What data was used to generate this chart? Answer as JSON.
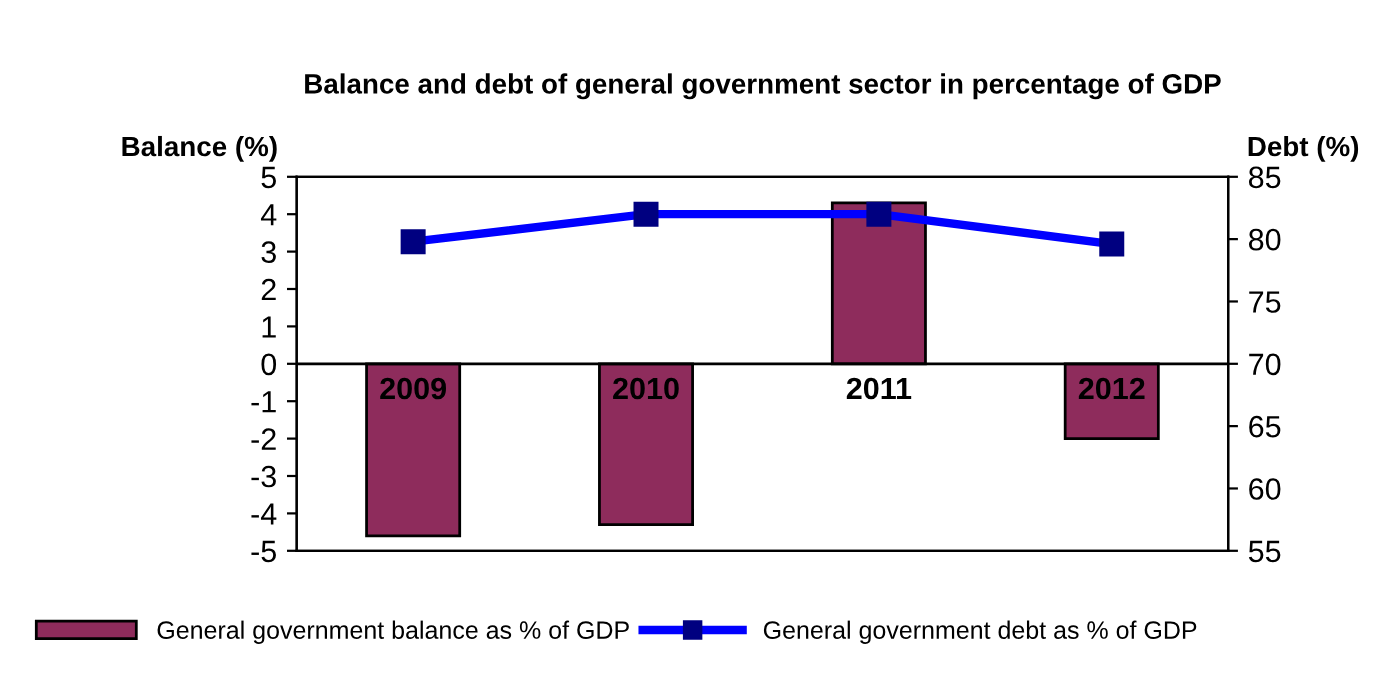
{
  "chart_data": {
    "type": "bar",
    "title": "Balance and debt of general government sector in percentage of GDP",
    "ylabel": "Balance (%)",
    "y2label": "Debt (%)",
    "categories": [
      "2009",
      "2010",
      "2011",
      "2012"
    ],
    "series": [
      {
        "name": "General government balance as % of GDP",
        "color": "#8e2c5c",
        "values": [
          -4.6,
          -4.3,
          4.3,
          -2.0
        ]
      },
      {
        "name": "General government debt as % of GDP",
        "type": "line",
        "axis": "y2",
        "color": "#0000ff",
        "marker": "square",
        "values": [
          79.8,
          82.0,
          82.0,
          79.6
        ]
      }
    ],
    "ylim": [
      -5,
      5
    ],
    "yticks": [
      -5,
      -4,
      -3,
      -2,
      -1,
      0,
      1,
      2,
      3,
      4,
      5
    ],
    "y2lim": [
      55,
      85
    ],
    "y2ticks": [
      55,
      60,
      65,
      70,
      75,
      80,
      85
    ],
    "legend": "bottom",
    "grid": false
  }
}
